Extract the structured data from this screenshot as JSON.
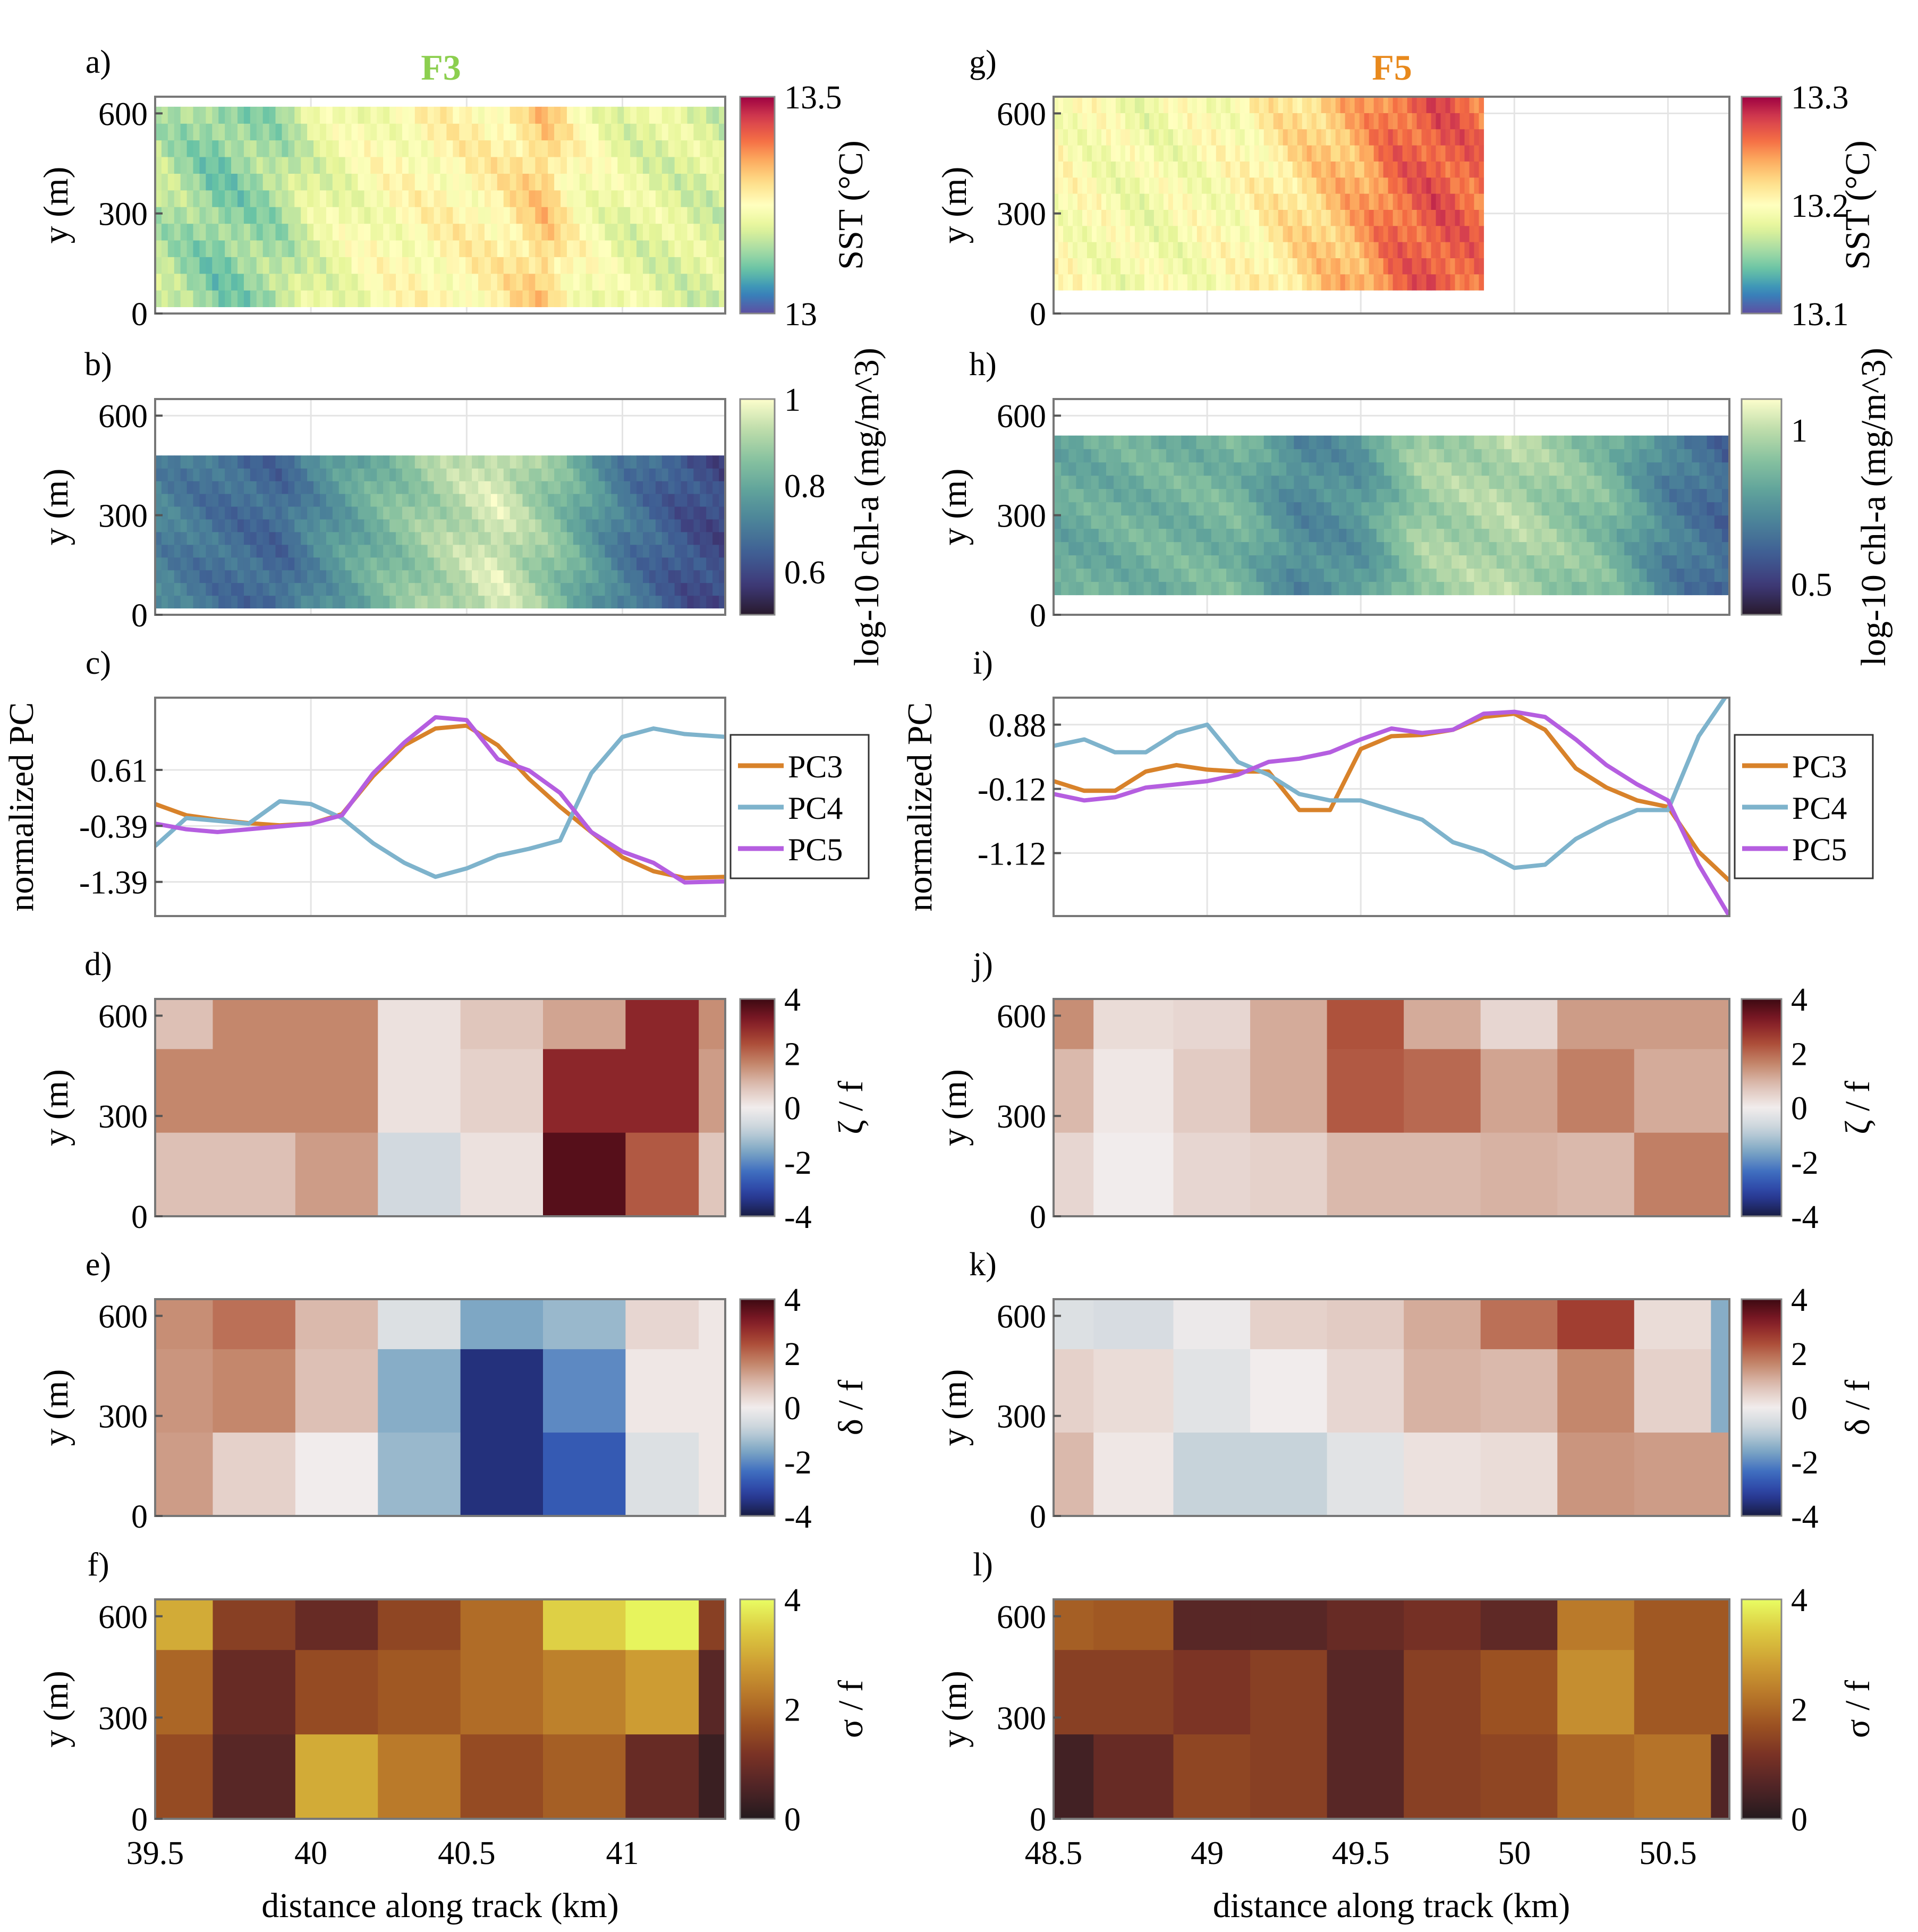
{
  "figure": {
    "columns": [
      {
        "title": "F3",
        "title_color": "#8ccf4f"
      },
      {
        "title": "F5",
        "title_color": "#e8891c"
      }
    ]
  },
  "chart_data": [
    {
      "id": "a",
      "panel_label": "a)",
      "type": "heatmap",
      "column": 0,
      "row": 0,
      "title": "F3",
      "ylabel": "y (m)",
      "yticks": [
        0,
        300,
        600
      ],
      "ylim": [
        0,
        650
      ],
      "xlim": [
        39.5,
        41.33
      ],
      "colorbar": {
        "label": "SST (°C)",
        "ticks": [
          "13",
          "13.5"
        ],
        "range": [
          13,
          13.5
        ],
        "cmap": "spectral"
      },
      "field": {
        "description": "continuous SST swath, warm yellow centre, cooler blue-green left, warm filament near 40.8 km",
        "coverage_y": [
          20,
          620
        ],
        "profile_x": [
          39.5,
          39.7,
          39.9,
          40.0,
          40.2,
          40.4,
          40.6,
          40.75,
          40.85,
          41.0,
          41.33
        ],
        "profile_values": [
          13.17,
          13.12,
          13.15,
          13.2,
          13.24,
          13.26,
          13.27,
          13.32,
          13.25,
          13.21,
          13.19
        ]
      }
    },
    {
      "id": "b",
      "panel_label": "b)",
      "type": "heatmap",
      "column": 0,
      "row": 1,
      "ylabel": "y (m)",
      "yticks": [
        0,
        300,
        600
      ],
      "ylim": [
        0,
        650
      ],
      "xlim": [
        39.5,
        41.33
      ],
      "colorbar": {
        "label": "log-10 chl-a (mg/m^3)",
        "ticks": [
          "0.6",
          "0.8",
          "1"
        ],
        "range": [
          0.5,
          1.0
        ],
        "cmap": "deep"
      },
      "field": {
        "coverage_y": [
          20,
          480
        ],
        "profile_x": [
          39.5,
          39.7,
          39.9,
          40.0,
          40.2,
          40.4,
          40.6,
          40.8,
          41.0,
          41.2,
          41.33
        ],
        "profile_values": [
          0.72,
          0.68,
          0.66,
          0.72,
          0.82,
          0.9,
          0.96,
          0.85,
          0.7,
          0.62,
          0.6
        ]
      }
    },
    {
      "id": "c",
      "panel_label": "c)",
      "type": "line",
      "column": 0,
      "row": 2,
      "ylabel": "normalized PC",
      "yticks": [
        0.61,
        -0.39,
        -1.39
      ],
      "ylim": [
        -2.0,
        1.9
      ],
      "xlim": [
        39.5,
        41.33
      ],
      "legend": {
        "position": "outside-right",
        "entries": [
          "PC3",
          "PC4",
          "PC5"
        ]
      },
      "x": [
        39.5,
        39.6,
        39.7,
        39.8,
        39.9,
        40.0,
        40.1,
        40.2,
        40.3,
        40.4,
        40.5,
        40.6,
        40.7,
        40.8,
        40.9,
        41.0,
        41.1,
        41.2,
        41.33
      ],
      "series": [
        {
          "name": "PC3",
          "color": "#d8822a",
          "values": [
            0.0,
            -0.2,
            -0.28,
            -0.34,
            -0.38,
            -0.35,
            -0.18,
            0.5,
            1.05,
            1.35,
            1.4,
            1.05,
            0.45,
            -0.05,
            -0.5,
            -0.95,
            -1.2,
            -1.32,
            -1.3
          ]
        },
        {
          "name": "PC4",
          "color": "#7eb3cc",
          "values": [
            -0.75,
            -0.25,
            -0.3,
            -0.35,
            0.05,
            0.0,
            -0.25,
            -0.7,
            -1.05,
            -1.3,
            -1.15,
            -0.92,
            -0.8,
            -0.65,
            0.55,
            1.2,
            1.35,
            1.25,
            1.2
          ]
        },
        {
          "name": "PC5",
          "color": "#b55ee0",
          "values": [
            -0.35,
            -0.45,
            -0.5,
            -0.45,
            -0.4,
            -0.35,
            -0.2,
            0.55,
            1.1,
            1.55,
            1.5,
            0.8,
            0.6,
            0.2,
            -0.5,
            -0.85,
            -1.05,
            -1.4,
            -1.38
          ]
        }
      ]
    },
    {
      "id": "d",
      "panel_label": "d)",
      "type": "heatmap",
      "column": 0,
      "row": 3,
      "ylabel": "y (m)",
      "yticks": [
        0,
        300,
        600
      ],
      "ylim": [
        0,
        650
      ],
      "xlim": [
        39.5,
        41.33
      ],
      "colorbar": {
        "label": "ζ / f",
        "ticks": [
          "4",
          "2",
          "0",
          "-2",
          "-4"
        ],
        "range": [
          -4,
          4
        ],
        "cmap": "balance"
      },
      "x_edges": [
        39.5,
        39.685,
        39.95,
        40.215,
        40.48,
        40.745,
        41.01,
        41.245,
        41.33
      ],
      "y_edges": [
        0,
        250,
        500,
        650
      ],
      "values": [
        [
          0.8,
          1.6,
          1.6,
          0.2,
          0.7,
          1.2,
          3.0,
          1.5
        ],
        [
          1.6,
          1.6,
          1.6,
          0.2,
          0.5,
          3.0,
          3.0,
          1.3
        ],
        [
          0.8,
          0.8,
          1.3,
          -0.6,
          0.2,
          3.7,
          2.2,
          0.7
        ]
      ]
    },
    {
      "id": "e",
      "panel_label": "e)",
      "type": "heatmap",
      "column": 0,
      "row": 4,
      "ylabel": "y (m)",
      "yticks": [
        0,
        300,
        600
      ],
      "ylim": [
        0,
        650
      ],
      "xlim": [
        39.5,
        41.33
      ],
      "colorbar": {
        "label": "δ / f",
        "ticks": [
          "4",
          "2",
          "0",
          "-2",
          "-4"
        ],
        "range": [
          -4,
          4
        ],
        "cmap": "balance"
      },
      "x_edges": [
        39.5,
        39.685,
        39.95,
        40.215,
        40.48,
        40.745,
        41.01,
        41.245,
        41.33
      ],
      "y_edges": [
        0,
        250,
        500,
        650
      ],
      "values": [
        [
          1.5,
          1.9,
          0.9,
          -0.4,
          -1.6,
          -1.3,
          0.4,
          0.1
        ],
        [
          1.4,
          1.6,
          0.8,
          -1.5,
          -3.5,
          -2.0,
          0.1,
          0.1
        ],
        [
          1.3,
          0.5,
          0.0,
          -1.3,
          -3.5,
          -2.7,
          -0.4,
          0.1
        ]
      ]
    },
    {
      "id": "f",
      "panel_label": "f)",
      "type": "heatmap",
      "column": 0,
      "row": 5,
      "ylabel": "y (m)",
      "yticks": [
        0,
        300,
        600
      ],
      "ylim": [
        0,
        650
      ],
      "xlim": [
        39.5,
        41.33
      ],
      "xlabel": "distance along track (km)",
      "xticks": [
        39.5,
        40,
        40.5,
        41
      ],
      "colorbar": {
        "label": "σ / f",
        "ticks": [
          "4",
          "2",
          "0"
        ],
        "range": [
          0,
          4
        ],
        "cmap": "turbid"
      },
      "x_edges": [
        39.5,
        39.685,
        39.95,
        40.215,
        40.48,
        40.745,
        41.01,
        41.245,
        41.33
      ],
      "y_edges": [
        0,
        250,
        500,
        650
      ],
      "values": [
        [
          3.0,
          1.4,
          0.9,
          1.5,
          2.1,
          3.5,
          3.9,
          1.4
        ],
        [
          2.0,
          0.9,
          1.6,
          1.8,
          2.1,
          2.4,
          2.8,
          0.7
        ],
        [
          1.6,
          0.7,
          3.0,
          2.3,
          1.6,
          1.9,
          0.9,
          0.3
        ]
      ]
    },
    {
      "id": "g",
      "panel_label": "g)",
      "type": "heatmap",
      "column": 1,
      "row": 0,
      "title": "F5",
      "ylabel": "y (m)",
      "yticks": [
        0,
        300,
        600
      ],
      "ylim": [
        0,
        650
      ],
      "xlim": [
        48.5,
        50.7
      ],
      "colorbar": {
        "label": "SST (°C)",
        "ticks": [
          "13.1",
          "13.2",
          "13.3"
        ],
        "range": [
          13.1,
          13.3
        ],
        "cmap": "spectral"
      },
      "field": {
        "coverage_x": [
          48.5,
          49.9
        ],
        "coverage_y": [
          70,
          650
        ],
        "profile_x": [
          48.5,
          48.8,
          49.1,
          49.3,
          49.5,
          49.6,
          49.75,
          49.9
        ],
        "profile_values": [
          13.2,
          13.19,
          13.2,
          13.22,
          13.24,
          13.26,
          13.27,
          13.26
        ]
      }
    },
    {
      "id": "h",
      "panel_label": "h)",
      "type": "heatmap",
      "column": 1,
      "row": 1,
      "ylabel": "y (m)",
      "yticks": [
        0,
        300,
        600
      ],
      "ylim": [
        0,
        650
      ],
      "xlim": [
        48.5,
        50.7
      ],
      "colorbar": {
        "label": "log-10 chl-a (mg/m^3)",
        "ticks": [
          "0.5",
          "1"
        ],
        "range": [
          0.4,
          1.1
        ],
        "cmap": "deep"
      },
      "field": {
        "coverage_y": [
          60,
          540
        ],
        "profile_x": [
          48.5,
          48.8,
          49.1,
          49.3,
          49.5,
          49.7,
          50.0,
          50.3,
          50.5,
          50.7
        ],
        "profile_values": [
          0.82,
          0.85,
          0.86,
          0.72,
          0.76,
          0.95,
          0.98,
          0.88,
          0.7,
          0.62
        ]
      }
    },
    {
      "id": "i",
      "panel_label": "i)",
      "type": "line",
      "column": 1,
      "row": 2,
      "ylabel": "normalized PC",
      "yticks": [
        0.88,
        -0.12,
        -1.12
      ],
      "ylim": [
        -2.1,
        1.3
      ],
      "xlim": [
        48.5,
        50.7
      ],
      "legend": {
        "position": "outside-right",
        "entries": [
          "PC3",
          "PC4",
          "PC5"
        ]
      },
      "x": [
        48.5,
        48.6,
        48.7,
        48.8,
        48.9,
        49.0,
        49.1,
        49.2,
        49.3,
        49.4,
        49.5,
        49.6,
        49.7,
        49.8,
        49.9,
        50.0,
        50.1,
        50.2,
        50.3,
        50.4,
        50.5,
        50.6,
        50.7
      ],
      "series": [
        {
          "name": "PC3",
          "color": "#d8822a",
          "values": [
            0.0,
            -0.15,
            -0.15,
            0.15,
            0.25,
            0.18,
            0.15,
            0.15,
            -0.45,
            -0.45,
            0.5,
            0.7,
            0.72,
            0.8,
            1.0,
            1.05,
            0.8,
            0.2,
            -0.1,
            -0.3,
            -0.4,
            -1.1,
            -1.55
          ]
        },
        {
          "name": "PC4",
          "color": "#7eb3cc",
          "values": [
            0.55,
            0.65,
            0.45,
            0.45,
            0.75,
            0.88,
            0.3,
            0.1,
            -0.2,
            -0.3,
            -0.3,
            -0.45,
            -0.6,
            -0.95,
            -1.1,
            -1.35,
            -1.3,
            -0.9,
            -0.65,
            -0.45,
            -0.45,
            0.7,
            1.4
          ]
        },
        {
          "name": "PC5",
          "color": "#b55ee0",
          "values": [
            -0.2,
            -0.3,
            -0.25,
            -0.1,
            -0.05,
            0.0,
            0.1,
            0.3,
            0.35,
            0.45,
            0.65,
            0.82,
            0.75,
            0.8,
            1.05,
            1.08,
            1.0,
            0.65,
            0.25,
            -0.05,
            -0.3,
            -1.3,
            -2.1
          ]
        }
      ]
    },
    {
      "id": "j",
      "panel_label": "j)",
      "type": "heatmap",
      "column": 1,
      "row": 3,
      "ylabel": "y (m)",
      "yticks": [
        0,
        300,
        600
      ],
      "ylim": [
        0,
        650
      ],
      "xlim": [
        48.5,
        50.7
      ],
      "colorbar": {
        "label": "ζ / f",
        "ticks": [
          "4",
          "2",
          "0",
          "-2",
          "-4"
        ],
        "range": [
          -4,
          4
        ],
        "cmap": "balance"
      },
      "x_edges": [
        48.5,
        48.63,
        48.89,
        49.14,
        49.39,
        49.64,
        49.89,
        50.14,
        50.39,
        50.64,
        50.7
      ],
      "y_edges": [
        0,
        250,
        500,
        650
      ],
      "values": [
        [
          1.5,
          0.3,
          0.4,
          1.1,
          2.3,
          1.1,
          0.4,
          1.3,
          1.3,
          1.3
        ],
        [
          0.9,
          0.1,
          0.6,
          1.1,
          2.2,
          2.0,
          1.2,
          1.7,
          1.1,
          1.1
        ],
        [
          0.4,
          0.0,
          0.4,
          0.5,
          0.9,
          0.9,
          1.0,
          0.9,
          1.7,
          1.7
        ]
      ]
    },
    {
      "id": "k",
      "panel_label": "k)",
      "type": "heatmap",
      "column": 1,
      "row": 4,
      "ylabel": "y (m)",
      "yticks": [
        0,
        300,
        600
      ],
      "ylim": [
        0,
        650
      ],
      "xlim": [
        48.5,
        50.7
      ],
      "colorbar": {
        "label": "δ / f",
        "ticks": [
          "4",
          "2",
          "0",
          "-2",
          "-4"
        ],
        "range": [
          -4,
          4
        ],
        "cmap": "balance"
      },
      "x_edges": [
        48.5,
        48.63,
        48.89,
        49.14,
        49.39,
        49.64,
        49.89,
        50.14,
        50.39,
        50.64,
        50.7
      ],
      "y_edges": [
        0,
        250,
        500,
        650
      ],
      "values": [
        [
          -0.4,
          -0.5,
          -0.1,
          0.5,
          0.6,
          1.1,
          1.9,
          2.6,
          0.3,
          -1.5
        ],
        [
          0.5,
          0.3,
          -0.3,
          0.0,
          0.4,
          1.0,
          0.9,
          1.6,
          0.5,
          -1.5
        ],
        [
          0.9,
          0.1,
          -0.8,
          -0.8,
          -0.3,
          0.2,
          0.3,
          1.4,
          1.3,
          1.3
        ]
      ]
    },
    {
      "id": "l",
      "panel_label": "l)",
      "type": "heatmap",
      "column": 1,
      "row": 5,
      "ylabel": "y (m)",
      "yticks": [
        0,
        300,
        600
      ],
      "ylim": [
        0,
        650
      ],
      "xlim": [
        48.5,
        50.7
      ],
      "xlabel": "distance along track (km)",
      "xticks": [
        48.5,
        49,
        49.5,
        50,
        50.5
      ],
      "colorbar": {
        "label": "σ / f",
        "ticks": [
          "4",
          "2",
          "0"
        ],
        "range": [
          0,
          4
        ],
        "cmap": "turbid"
      },
      "x_edges": [
        48.5,
        48.63,
        48.89,
        49.14,
        49.39,
        49.64,
        49.89,
        50.14,
        50.39,
        50.64,
        50.7
      ],
      "y_edges": [
        0,
        250,
        500,
        650
      ],
      "values": [
        [
          1.9,
          1.8,
          0.7,
          0.7,
          0.9,
          1.1,
          0.8,
          2.3,
          1.8,
          1.8
        ],
        [
          1.4,
          1.4,
          1.2,
          1.4,
          0.7,
          1.4,
          1.7,
          2.6,
          1.8,
          1.8
        ],
        [
          0.4,
          0.9,
          1.5,
          1.4,
          0.7,
          1.4,
          1.5,
          2.0,
          2.2,
          0.6
        ]
      ]
    }
  ]
}
